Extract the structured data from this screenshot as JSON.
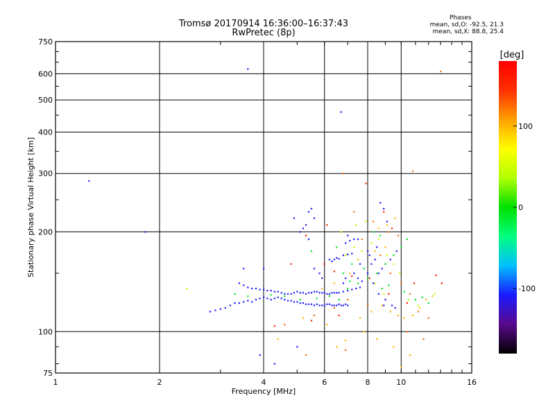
{
  "chart_data": {
    "type": "scatter",
    "title_line1": "Tromsø 20170914 16:36:00–16:37:43",
    "title_line2": "RwPretec (8p)",
    "xlabel": "Frequency [MHz]",
    "ylabel": "Stationary phase Virtual Height [km]",
    "xscale": "log",
    "yscale": "log",
    "xlim": [
      1,
      16
    ],
    "ylim": [
      75,
      750
    ],
    "x_ticks": [
      1,
      2,
      4,
      6,
      8,
      10,
      16
    ],
    "x_tick_labels": [
      "1",
      "2",
      "4",
      "6",
      "8",
      "10",
      "16"
    ],
    "y_ticks": [
      75,
      100,
      200,
      300,
      400,
      500,
      600,
      750
    ],
    "y_tick_labels": [
      "75",
      "100",
      "200",
      "300",
      "400",
      "500",
      "600",
      "750"
    ],
    "grid": true,
    "phase_stats": {
      "title": "Phases",
      "o_line": "mean, sd,O: -92.5, 21.3",
      "x_line": "mean, sd,X:  88.8, 25.4"
    },
    "colorbar": {
      "label": "[deg]",
      "range": [
        -180,
        180
      ],
      "ticks": [
        100,
        0,
        -100
      ],
      "tick_labels": [
        "100",
        "0",
        "-100"
      ],
      "colors": [
        "#000000",
        "#5a0a8c",
        "#1a1aff",
        "#00bfff",
        "#00ff80",
        "#00e000",
        "#b0ff00",
        "#ffff00",
        "#ffa000",
        "#ff3000",
        "#ff0000"
      ]
    },
    "series": [
      {
        "phase": -110,
        "points": [
          [
            1.25,
            285
          ],
          [
            1.82,
            200
          ],
          [
            2.8,
            115
          ],
          [
            2.9,
            116
          ],
          [
            3.0,
            117
          ],
          [
            3.1,
            118
          ],
          [
            3.2,
            120
          ],
          [
            3.3,
            122
          ],
          [
            3.4,
            122
          ],
          [
            3.5,
            123
          ],
          [
            3.6,
            124
          ],
          [
            3.7,
            123
          ],
          [
            3.8,
            125
          ],
          [
            3.9,
            126
          ],
          [
            4.0,
            127
          ],
          [
            4.1,
            126
          ],
          [
            4.2,
            125
          ],
          [
            4.3,
            126
          ],
          [
            4.4,
            127
          ],
          [
            4.5,
            126
          ],
          [
            4.6,
            125
          ],
          [
            4.7,
            124
          ],
          [
            4.8,
            124
          ],
          [
            4.9,
            123
          ],
          [
            5.0,
            123
          ],
          [
            5.1,
            122
          ],
          [
            5.2,
            122
          ],
          [
            5.3,
            121
          ],
          [
            5.4,
            121
          ],
          [
            5.5,
            121
          ],
          [
            5.6,
            120
          ],
          [
            5.7,
            121
          ],
          [
            5.8,
            120
          ],
          [
            5.9,
            120
          ],
          [
            6.0,
            120
          ],
          [
            6.1,
            121
          ],
          [
            6.2,
            121
          ],
          [
            6.3,
            120
          ],
          [
            6.4,
            120
          ],
          [
            6.5,
            120
          ],
          [
            6.6,
            121
          ],
          [
            6.7,
            120
          ],
          [
            6.8,
            120
          ],
          [
            6.9,
            121
          ],
          [
            7.0,
            120
          ],
          [
            3.4,
            140
          ],
          [
            3.5,
            138
          ],
          [
            3.6,
            136
          ],
          [
            3.7,
            135
          ],
          [
            3.8,
            135
          ],
          [
            3.9,
            134
          ],
          [
            4.0,
            134
          ],
          [
            4.1,
            133
          ],
          [
            4.2,
            133
          ],
          [
            4.3,
            132
          ],
          [
            4.4,
            132
          ],
          [
            4.5,
            131
          ],
          [
            4.6,
            130
          ],
          [
            4.7,
            130
          ],
          [
            4.8,
            130
          ],
          [
            4.9,
            131
          ],
          [
            5.0,
            132
          ],
          [
            5.1,
            131
          ],
          [
            5.2,
            131
          ],
          [
            5.3,
            130
          ],
          [
            5.4,
            131
          ],
          [
            5.5,
            131
          ],
          [
            5.6,
            132
          ],
          [
            5.7,
            132
          ],
          [
            5.8,
            131
          ],
          [
            5.9,
            131
          ],
          [
            6.0,
            131
          ],
          [
            6.1,
            130
          ],
          [
            6.2,
            130
          ],
          [
            6.3,
            131
          ],
          [
            6.4,
            131
          ],
          [
            6.5,
            131
          ],
          [
            6.6,
            131
          ],
          [
            6.8,
            132
          ],
          [
            7.0,
            133
          ],
          [
            7.2,
            134
          ],
          [
            7.4,
            135
          ],
          [
            7.6,
            136
          ],
          [
            6.2,
            165
          ],
          [
            6.3,
            163
          ],
          [
            6.4,
            165
          ],
          [
            6.5,
            167
          ],
          [
            6.6,
            166
          ],
          [
            6.8,
            170
          ],
          [
            7.0,
            171
          ],
          [
            7.2,
            172
          ],
          [
            6.9,
            185
          ],
          [
            7.1,
            188
          ],
          [
            7.3,
            190
          ],
          [
            7.0,
            195
          ],
          [
            7.6,
            160
          ],
          [
            7.8,
            155
          ],
          [
            8.0,
            150
          ],
          [
            8.2,
            160
          ],
          [
            8.4,
            165
          ],
          [
            5.4,
            230
          ],
          [
            5.5,
            235
          ],
          [
            5.6,
            220
          ],
          [
            5.2,
            205
          ],
          [
            5.3,
            210
          ],
          [
            5.4,
            190
          ],
          [
            5.1,
            200
          ],
          [
            5.6,
            155
          ],
          [
            5.8,
            150
          ],
          [
            5.9,
            145
          ],
          [
            6.8,
            140
          ],
          [
            6.9,
            145
          ],
          [
            7.3,
            150
          ],
          [
            7.5,
            145
          ],
          [
            7.7,
            142
          ],
          [
            8.3,
            140
          ],
          [
            8.6,
            150
          ],
          [
            8.8,
            155
          ],
          [
            9.0,
            160
          ],
          [
            9.3,
            165
          ],
          [
            9.7,
            175
          ],
          [
            8.6,
            130
          ],
          [
            9.0,
            125
          ],
          [
            9.4,
            120
          ],
          [
            3.6,
            620
          ],
          [
            6.7,
            460
          ],
          [
            4.0,
            155
          ],
          [
            3.5,
            155
          ],
          [
            4.3,
            80
          ],
          [
            4.9,
            220
          ],
          [
            5.0,
            90
          ],
          [
            3.9,
            85
          ],
          [
            8.7,
            245
          ],
          [
            8.9,
            235
          ],
          [
            9.1,
            215
          ],
          [
            7.5,
            190
          ],
          [
            8.5,
            180
          ],
          [
            8.0,
            175
          ],
          [
            8.1,
            170
          ],
          [
            8.9,
            120
          ],
          [
            9.6,
            118
          ]
        ]
      },
      {
        "phase": -10,
        "points": [
          [
            3.3,
            130
          ],
          [
            3.6,
            128
          ],
          [
            4.2,
            129
          ],
          [
            4.6,
            128
          ],
          [
            5.1,
            125
          ],
          [
            5.7,
            126
          ],
          [
            6.2,
            128
          ],
          [
            6.6,
            125
          ],
          [
            7.0,
            135
          ],
          [
            7.5,
            140
          ],
          [
            8.0,
            145
          ],
          [
            8.5,
            150
          ],
          [
            9.0,
            160
          ],
          [
            9.5,
            170
          ],
          [
            10.0,
            180
          ],
          [
            10.4,
            190
          ],
          [
            8.3,
            200
          ],
          [
            8.7,
            195
          ],
          [
            6.5,
            180
          ],
          [
            7.2,
            160
          ],
          [
            7.8,
            155
          ],
          [
            8.8,
            135
          ],
          [
            9.2,
            138
          ],
          [
            10.2,
            132
          ],
          [
            11.0,
            125
          ],
          [
            11.5,
            127
          ],
          [
            12.0,
            122
          ],
          [
            5.5,
            175
          ],
          [
            6.8,
            150
          ],
          [
            7.1,
            142
          ]
        ]
      },
      {
        "phase": 40,
        "points": [
          [
            2.4,
            135
          ],
          [
            6.9,
            170
          ],
          [
            7.3,
            180
          ],
          [
            7.7,
            175
          ],
          [
            8.2,
            185
          ],
          [
            8.6,
            190
          ],
          [
            9.1,
            170
          ],
          [
            9.5,
            160
          ],
          [
            9.9,
            150
          ],
          [
            8.4,
            140
          ],
          [
            8.9,
            130
          ],
          [
            10.5,
            125
          ],
          [
            11.2,
            120
          ],
          [
            12.5,
            130
          ],
          [
            6.7,
            200
          ],
          [
            7.4,
            210
          ],
          [
            7.9,
            215
          ]
        ]
      },
      {
        "phase": 100,
        "points": [
          [
            4.4,
            95
          ],
          [
            6.5,
            90
          ],
          [
            6.9,
            94
          ],
          [
            7.6,
            110
          ],
          [
            8.2,
            115
          ],
          [
            8.8,
            120
          ],
          [
            9.3,
            115
          ],
          [
            9.8,
            112
          ],
          [
            10.2,
            110
          ],
          [
            10.8,
            112
          ],
          [
            11.3,
            118
          ],
          [
            11.8,
            125
          ],
          [
            12.3,
            128
          ],
          [
            8.6,
            205
          ],
          [
            9.1,
            210
          ],
          [
            9.6,
            220
          ],
          [
            7.5,
            165
          ],
          [
            8.4,
            175
          ],
          [
            9.0,
            180
          ],
          [
            7.1,
            150
          ],
          [
            6.4,
            140
          ],
          [
            5.9,
            135
          ],
          [
            5.2,
            110
          ],
          [
            6.1,
            105
          ],
          [
            7.8,
            100
          ],
          [
            8.5,
            95
          ],
          [
            9.5,
            90
          ],
          [
            10.6,
            85
          ],
          [
            10.0,
            78
          ]
        ]
      },
      {
        "phase": 125,
        "points": [
          [
            6.8,
            300
          ],
          [
            10.8,
            305
          ],
          [
            13.0,
            610
          ],
          [
            7.3,
            230
          ],
          [
            8.3,
            215
          ],
          [
            9.2,
            200
          ],
          [
            9.8,
            195
          ],
          [
            7.7,
            190
          ],
          [
            8.7,
            170
          ],
          [
            9.3,
            150
          ],
          [
            10.0,
            140
          ],
          [
            10.6,
            130
          ],
          [
            11.2,
            115
          ],
          [
            12.0,
            110
          ],
          [
            7.0,
            125
          ],
          [
            6.4,
            118
          ],
          [
            5.6,
            112
          ],
          [
            4.6,
            105
          ],
          [
            5.3,
            85
          ],
          [
            6.9,
            88
          ],
          [
            8.0,
            120
          ],
          [
            10.4,
            100
          ],
          [
            11.6,
            95
          ]
        ]
      },
      {
        "phase": 160,
        "points": [
          [
            7.9,
            280
          ],
          [
            8.9,
            230
          ],
          [
            9.4,
            205
          ],
          [
            6.1,
            210
          ],
          [
            5.3,
            195
          ],
          [
            4.8,
            160
          ],
          [
            6.4,
            152
          ],
          [
            7.2,
            147
          ],
          [
            8.1,
            145
          ],
          [
            9.2,
            130
          ],
          [
            10.4,
            122
          ],
          [
            6.6,
            112
          ],
          [
            5.5,
            108
          ],
          [
            4.3,
            104
          ],
          [
            6.0,
            160
          ],
          [
            10.9,
            140
          ],
          [
            12.6,
            148
          ],
          [
            13.1,
            140
          ]
        ]
      }
    ]
  }
}
